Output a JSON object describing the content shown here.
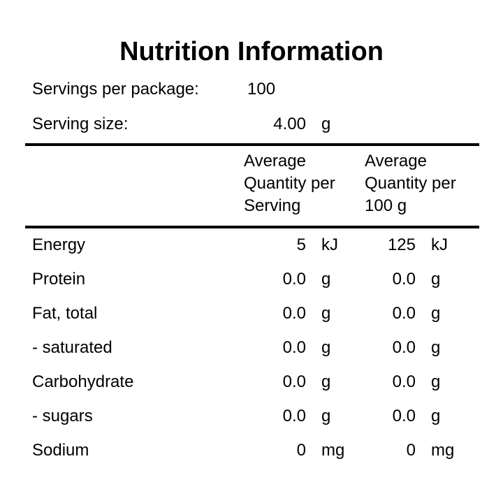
{
  "title": "Nutrition Information",
  "servings": {
    "per_package_label": "Servings per package:",
    "per_package_value": "100",
    "size_label": "Serving size:",
    "size_value": "4.00",
    "size_unit": "g"
  },
  "columns": {
    "per_serving": "Average Quantity per Serving",
    "per_100g": "Average Quantity per 100 g"
  },
  "rows": [
    {
      "name": "Energy",
      "serving": "5",
      "serving_unit": "kJ",
      "per100": "125",
      "per100_unit": "kJ"
    },
    {
      "name": "Protein",
      "serving": "0.0",
      "serving_unit": "g",
      "per100": "0.0",
      "per100_unit": "g"
    },
    {
      "name": "Fat, total",
      "serving": "0.0",
      "serving_unit": "g",
      "per100": "0.0",
      "per100_unit": "g"
    },
    {
      "name": "- saturated",
      "serving": "0.0",
      "serving_unit": "g",
      "per100": "0.0",
      "per100_unit": "g"
    },
    {
      "name": "Carbohydrate",
      "serving": "0.0",
      "serving_unit": "g",
      "per100": "0.0",
      "per100_unit": "g"
    },
    {
      "name": "- sugars",
      "serving": "0.0",
      "serving_unit": "g",
      "per100": "0.0",
      "per100_unit": "g"
    },
    {
      "name": "Sodium",
      "serving": "0",
      "serving_unit": "mg",
      "per100": "0",
      "per100_unit": "mg"
    }
  ]
}
